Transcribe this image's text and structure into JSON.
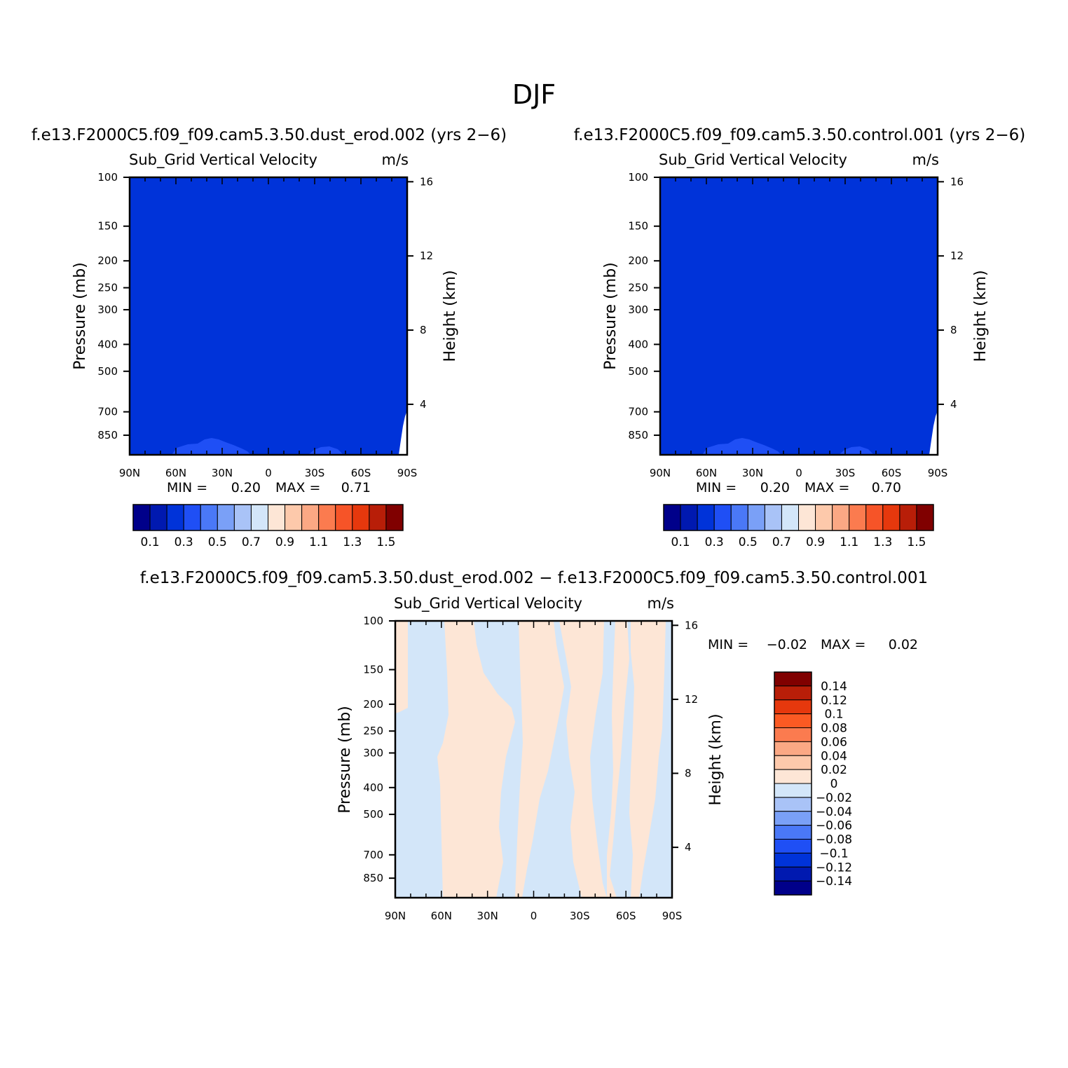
{
  "figure": {
    "title": "DJF"
  },
  "panels": {
    "left": {
      "case_title": "f.e13.F2000C5.f09_f09.cam5.3.50.dust_erod.002 (yrs 2−6)",
      "variable_label": "Sub_Grid Vertical Velocity",
      "units_label": "m/s",
      "min_label": "MIN =",
      "min_value": "0.20",
      "max_label": "MAX =",
      "max_value": "0.71"
    },
    "right": {
      "case_title": "f.e13.F2000C5.f09_f09.cam5.3.50.control.001 (yrs 2−6)",
      "variable_label": "Sub_Grid Vertical Velocity",
      "units_label": "m/s",
      "min_label": "MIN =",
      "min_value": "0.20",
      "max_label": "MAX =",
      "max_value": "0.70"
    },
    "diff": {
      "case_title": "f.e13.F2000C5.f09_f09.cam5.3.50.dust_erod.002 − f.e13.F2000C5.f09_f09.cam5.3.50.control.001",
      "variable_label": "Sub_Grid Vertical Velocity",
      "units_label": "m/s",
      "min_label": "MIN =",
      "min_value": "−0.02",
      "max_label": "MAX =",
      "max_value": "0.02"
    }
  },
  "axes": {
    "pressure_title": "Pressure (mb)",
    "height_title": "Height (km)",
    "pressure_ticks": [
      "100",
      "150",
      "200",
      "250",
      "300",
      "400",
      "500",
      "700",
      "850"
    ],
    "pressure_values": [
      100,
      150,
      200,
      250,
      300,
      400,
      500,
      700,
      850
    ],
    "height_ticks": [
      "16",
      "12",
      "8",
      "4"
    ],
    "height_values": [
      16,
      12,
      8,
      4
    ],
    "lat_ticks": [
      "90N",
      "60N",
      "30N",
      "0",
      "30S",
      "60S",
      "90S"
    ],
    "lat_values": [
      90,
      60,
      30,
      0,
      -30,
      -60,
      -90
    ]
  },
  "colorbars": {
    "abs_labels": [
      "0.1",
      "0.3",
      "0.5",
      "0.7",
      "0.9",
      "1.1",
      "1.3",
      "1.5"
    ],
    "abs_colors": [
      "#00008a",
      "#0019b0",
      "#0033d9",
      "#1f4ff5",
      "#4a78f7",
      "#7aa0f7",
      "#a9c3f7",
      "#d3e6f9",
      "#fde6d6",
      "#fdc9ab",
      "#fba884",
      "#fb7b4f",
      "#f65428",
      "#e6380d",
      "#b81e08",
      "#800000"
    ],
    "diff_labels": [
      "0.14",
      "0.12",
      "0.1",
      "0.08",
      "0.06",
      "0.04",
      "0.02",
      "0",
      "−0.02",
      "−0.04",
      "−0.06",
      "−0.08",
      "−0.1",
      "−0.12",
      "−0.14"
    ],
    "diff_colors": [
      "#800000",
      "#b81e08",
      "#e6380d",
      "#fb5a23",
      "#fb7b4f",
      "#fba884",
      "#fdc9ab",
      "#fde6d6",
      "#d3e6f9",
      "#a9c3f7",
      "#7aa0f7",
      "#4a78f7",
      "#1f4ff5",
      "#0033d9",
      "#0019b0",
      "#00008a"
    ]
  },
  "chart_data": [
    {
      "type": "heatmap",
      "title": "Sub_Grid Vertical Velocity",
      "xlabel": "",
      "ylabel": "Pressure (mb)",
      "y2label": "Height (km)",
      "units": "m/s",
      "x": [
        90,
        60,
        30,
        0,
        -30,
        -60,
        -90
      ],
      "y_range_mb": [
        100,
        1000
      ],
      "field_summary": "uniform ~0.2 m/s (0.2–0.3 level) everywhere; slightly higher (0.3–0.4) near surface around 40N and 30S",
      "min": 0.2,
      "max": 0.71,
      "levels": [
        0.1,
        0.2,
        0.3,
        0.4,
        0.5,
        0.6,
        0.7,
        0.8,
        0.9,
        1.0,
        1.1,
        1.2,
        1.3,
        1.4,
        1.5
      ]
    },
    {
      "type": "heatmap",
      "title": "Sub_Grid Vertical Velocity",
      "xlabel": "",
      "ylabel": "Pressure (mb)",
      "y2label": "Height (km)",
      "units": "m/s",
      "x": [
        90,
        60,
        30,
        0,
        -30,
        -60,
        -90
      ],
      "y_range_mb": [
        100,
        1000
      ],
      "field_summary": "uniform ~0.2 m/s (0.2–0.3 level) everywhere; slightly higher (0.3–0.4) near surface around 40N and 30S",
      "min": 0.2,
      "max": 0.7,
      "levels": [
        0.1,
        0.2,
        0.3,
        0.4,
        0.5,
        0.6,
        0.7,
        0.8,
        0.9,
        1.0,
        1.1,
        1.2,
        1.3,
        1.4,
        1.5
      ]
    },
    {
      "type": "heatmap",
      "title": "Sub_Grid Vertical Velocity",
      "xlabel": "",
      "ylabel": "Pressure (mb)",
      "y2label": "Height (km)",
      "units": "m/s",
      "x": [
        90,
        60,
        30,
        0,
        -30,
        -60,
        -90
      ],
      "y_range_mb": [
        100,
        1000
      ],
      "field_summary": "differences between −0.02 and 0.02; alternating positive (0–0.02) and negative (−0.02–0) vertical bands across latitudes",
      "min": -0.02,
      "max": 0.02,
      "levels": [
        -0.14,
        -0.12,
        -0.1,
        -0.08,
        -0.06,
        -0.04,
        -0.02,
        0,
        0.02,
        0.04,
        0.06,
        0.08,
        0.1,
        0.12,
        0.14
      ]
    }
  ]
}
